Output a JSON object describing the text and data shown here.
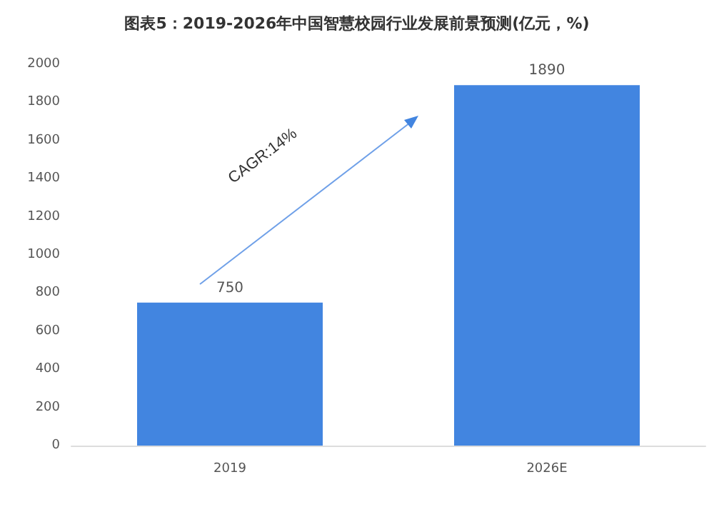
{
  "chart_data": {
    "type": "bar",
    "title": "图表5：2019-2026年中国智慧校园行业发展前景预测(亿元，%)",
    "categories": [
      "2019",
      "2026E"
    ],
    "values": [
      750,
      1890
    ],
    "color": "#4285e0",
    "ylim": [
      0,
      2000
    ],
    "yticks": [
      0,
      200,
      400,
      600,
      800,
      1000,
      1200,
      1400,
      1600,
      1800,
      2000
    ],
    "grid": false,
    "data_labels": true,
    "annotations": [
      "CAGR:14%"
    ]
  }
}
